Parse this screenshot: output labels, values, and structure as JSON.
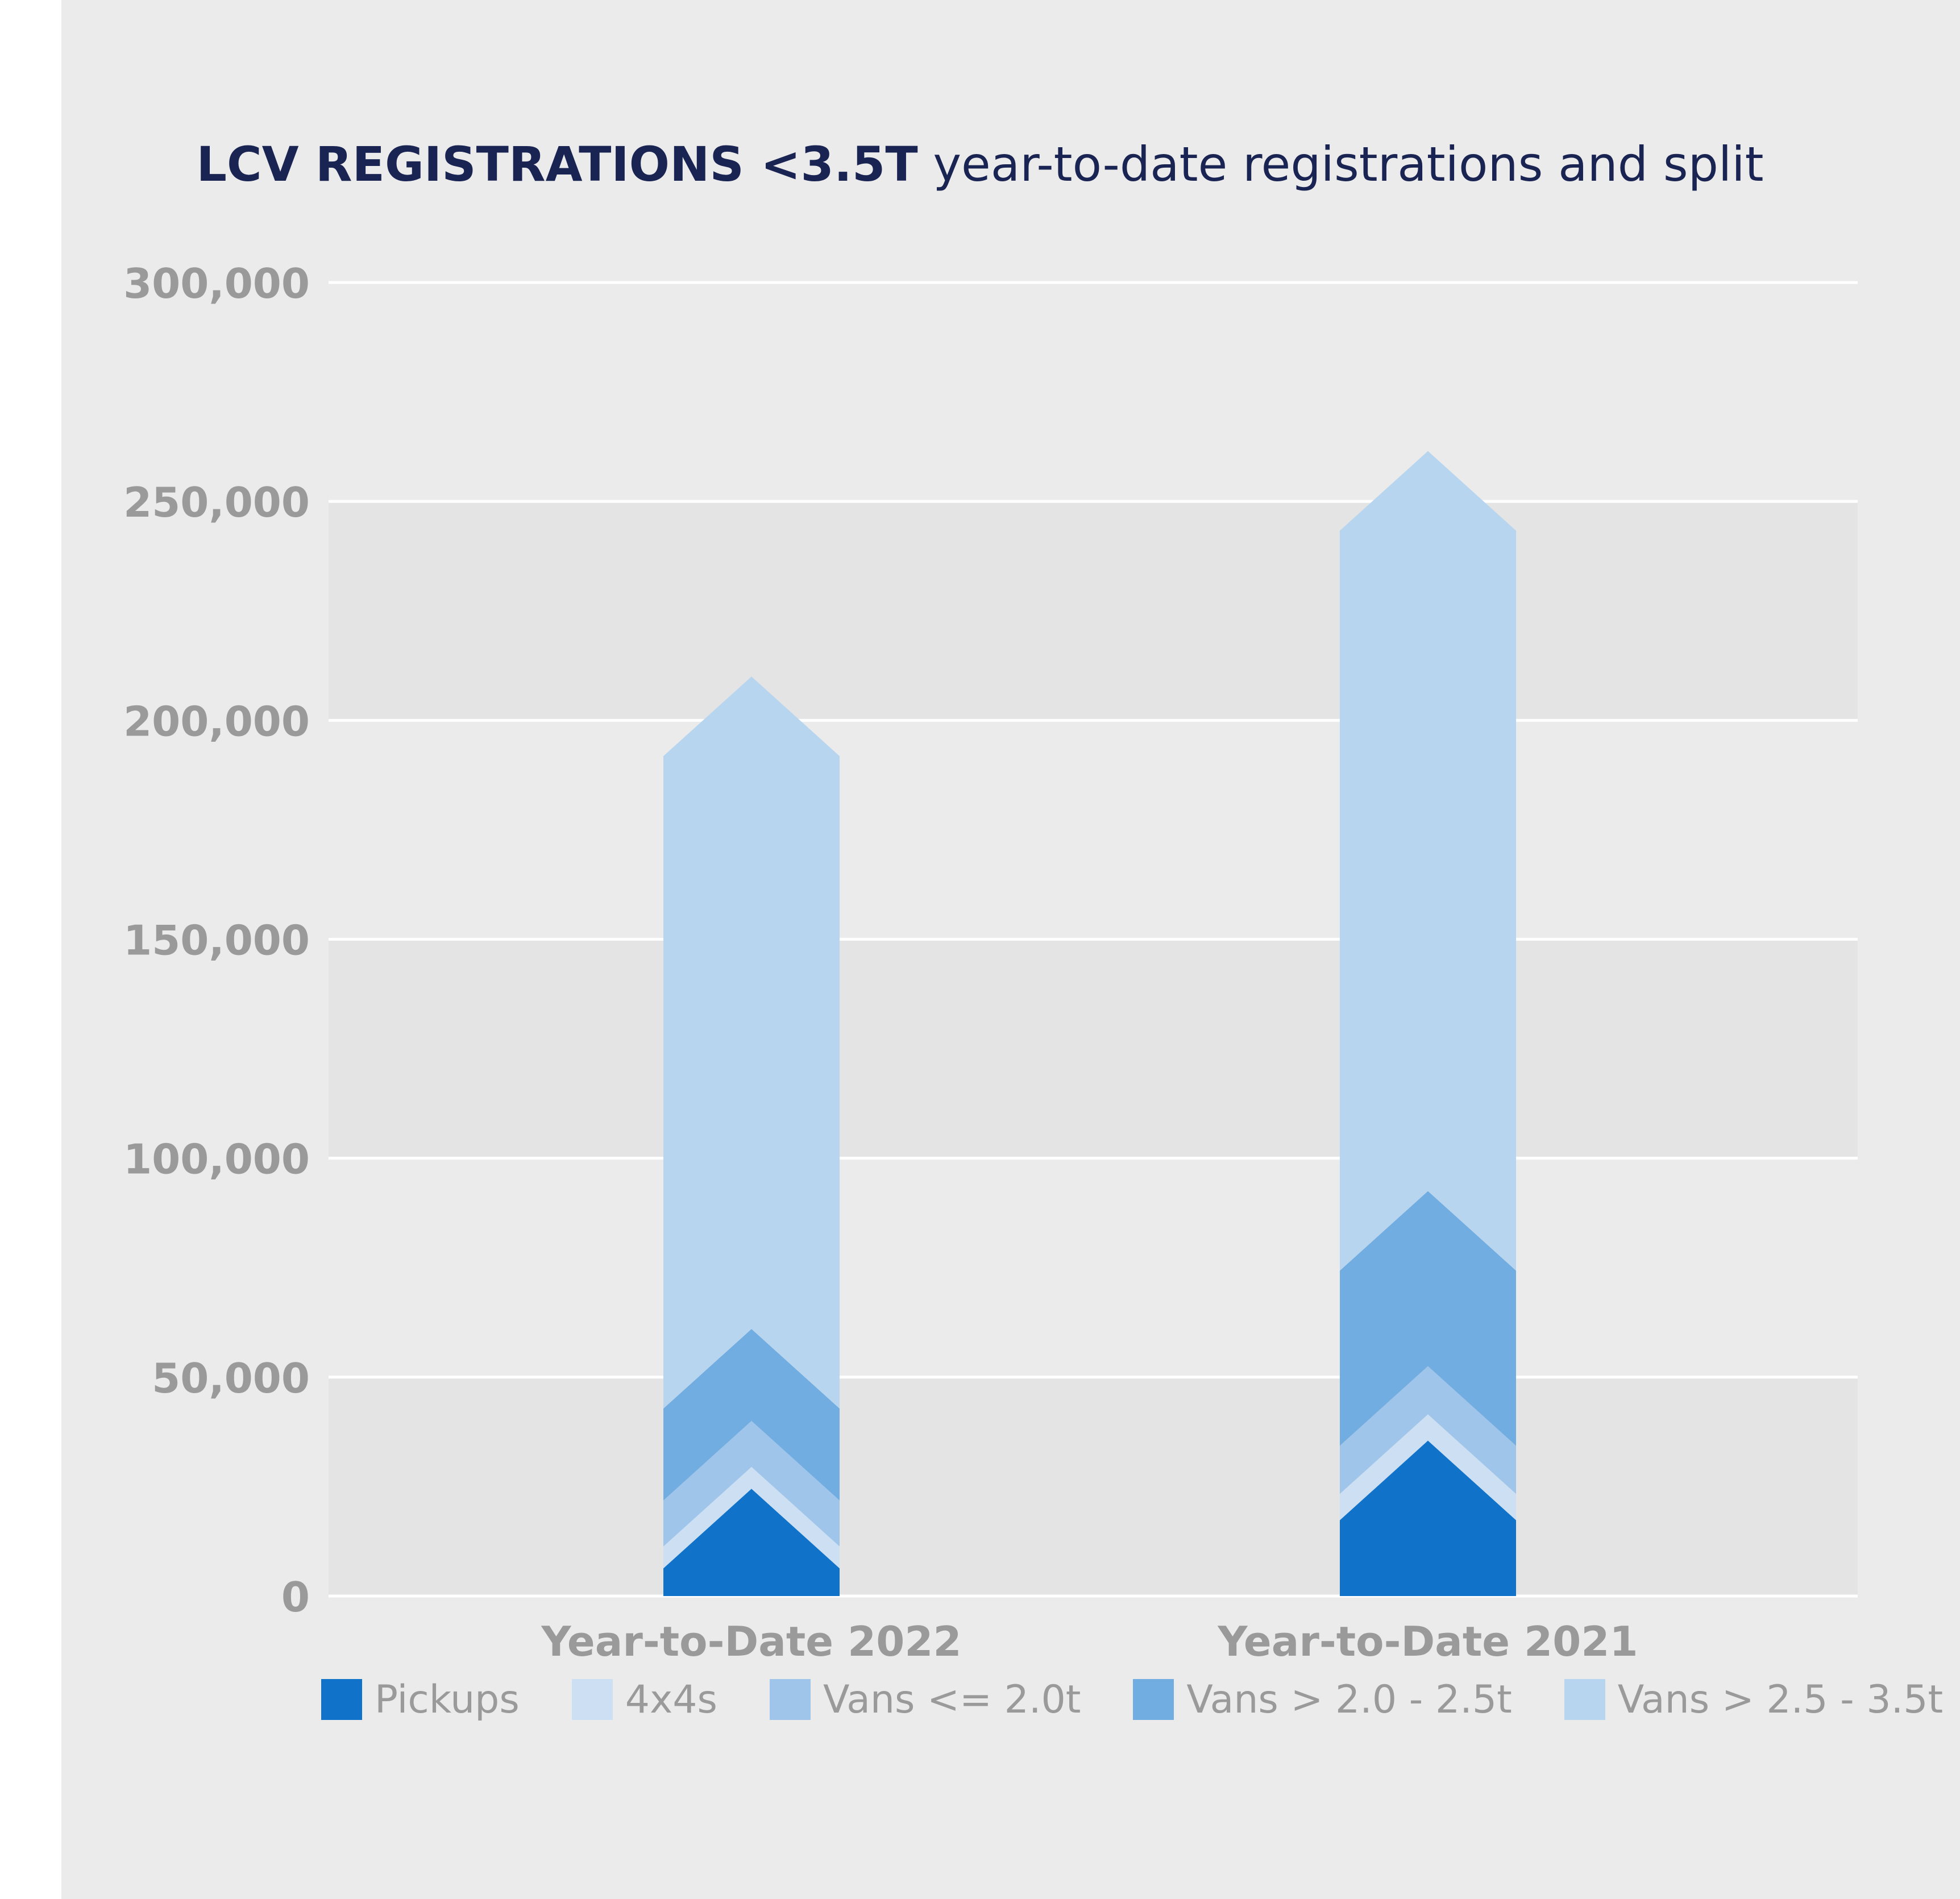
{
  "title": {
    "bold": "LCV REGISTRATIONS <3.5T",
    "rest": "year-to-date registrations and split"
  },
  "chart_data": {
    "type": "bar",
    "stacked": true,
    "categories": [
      "Year-to-Date 2022",
      "Year-to-Date 2021"
    ],
    "ylim": [
      0,
      300000
    ],
    "yticks": [
      0,
      50000,
      100000,
      150000,
      200000,
      250000,
      300000
    ],
    "ytick_labels": [
      "0",
      "50,000",
      "100,000",
      "150,000",
      "200,000",
      "250,000",
      "300,000"
    ],
    "grid": true,
    "legend_position": "bottom",
    "series": [
      {
        "name": "Pickups",
        "values": [
          24500,
          35500
        ],
        "color": "#1073c9"
      },
      {
        "name": "4x4s",
        "values": [
          5000,
          6000
        ],
        "color": "#ccdff3"
      },
      {
        "name": "Vans <= 2.0t",
        "values": [
          10500,
          11000
        ],
        "color": "#9fc5ea"
      },
      {
        "name": "Vans > 2.0 - 2.5t",
        "values": [
          21000,
          40000
        ],
        "color": "#72ade1"
      },
      {
        "name": "Vans > 2.5 - 3.5t",
        "values": [
          149000,
          169000
        ],
        "color": "#b8d5ef"
      }
    ]
  }
}
